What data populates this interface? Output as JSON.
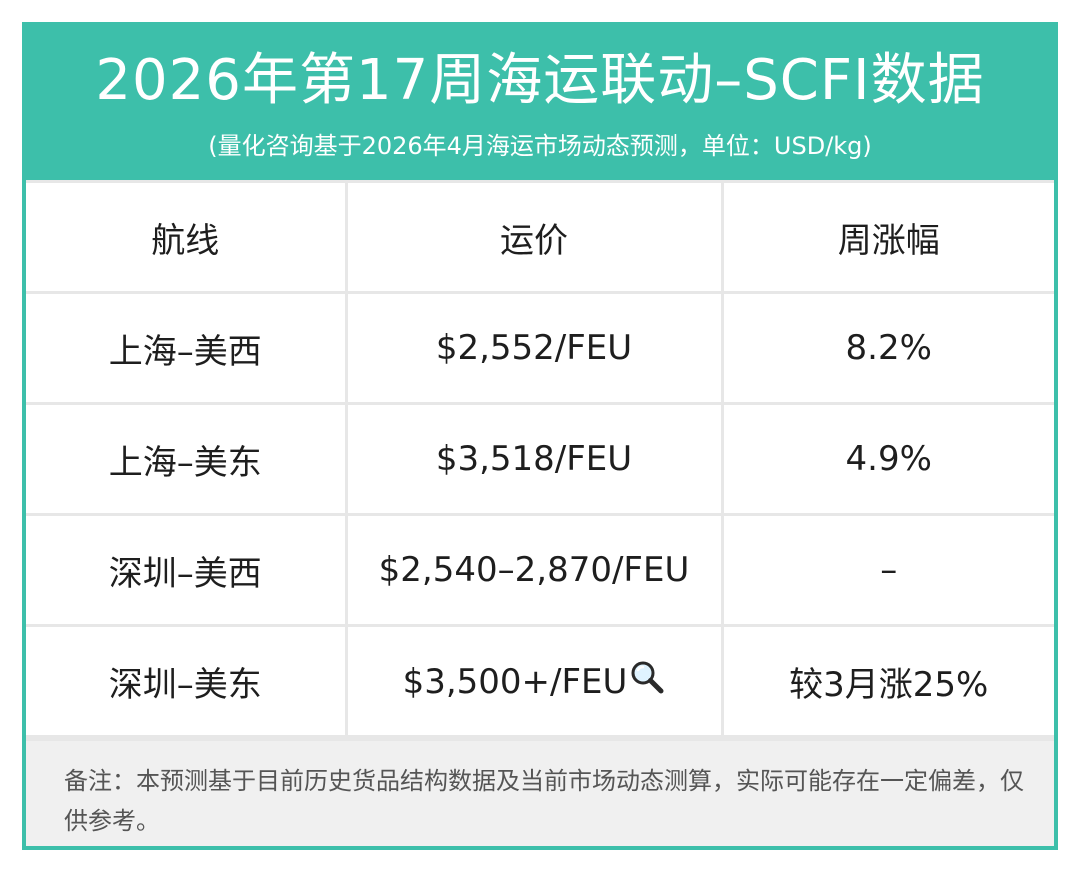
{
  "header": {
    "title": "2026年第17周海运联动–SCFI数据",
    "subtitle": "(量化咨询基于2026年4月海运市场动态预测，单位：USD/kg)"
  },
  "table": {
    "columns": [
      "航线",
      "运价",
      "周涨幅"
    ],
    "rows": [
      {
        "route": "上海–美西",
        "rate": "$2,552/FEU",
        "change": "8.2%"
      },
      {
        "route": "上海–美东",
        "rate": "$3,518/FEU",
        "change": "4.9%"
      },
      {
        "route": "深圳–美西",
        "rate": "$2,540–2,870/FEU",
        "change": "–"
      },
      {
        "route": "深圳–美东",
        "rate": "$3,500+/FEU",
        "change": "较3月涨25%"
      }
    ]
  },
  "icons": {
    "rate_row4": "magnifying-glass-icon"
  },
  "colors": {
    "accent": "#3dbfaa",
    "note_bg": "#f0f0f0"
  },
  "note": {
    "text": "备注：本预测基于目前历史货品结构数据及当前市场动态测算，实际可能存在一定偏差，仅供参考。"
  }
}
